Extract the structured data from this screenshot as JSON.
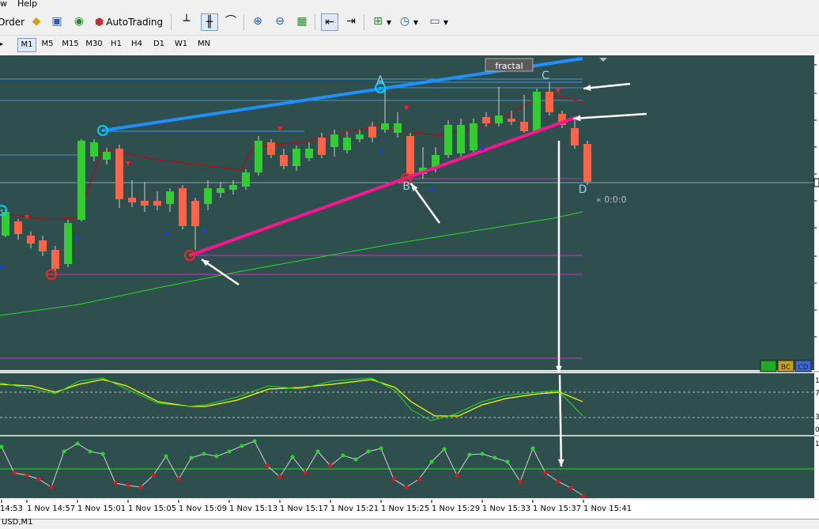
{
  "menu": {
    "help_label": "Help",
    "view_fragment": "w"
  },
  "toolbar": {
    "order_label": "Order",
    "autotrading_label": "AutoTrading"
  },
  "timeframes": [
    {
      "label": "M1",
      "active": true
    },
    {
      "label": "M5",
      "active": false
    },
    {
      "label": "M15",
      "active": false
    },
    {
      "label": "M30",
      "active": false
    },
    {
      "label": "H1",
      "active": false
    },
    {
      "label": "H4",
      "active": false
    },
    {
      "label": "D1",
      "active": false
    },
    {
      "label": "W1",
      "active": false
    },
    {
      "label": "MN",
      "active": false
    }
  ],
  "chart": {
    "fractal_label": "fractal",
    "points": [
      "A",
      "B",
      "C",
      "D"
    ],
    "timer_label": "« 0:0:0",
    "corner_buttons": [
      "",
      "BC",
      "CD"
    ],
    "time_labels": [
      "14:53",
      "1 Nov 14:57",
      "1 Nov 15:01",
      "1 Nov 15:05",
      "1 Nov 15:09",
      "1 Nov 15:13",
      "1 Nov 15:17",
      "1 Nov 15:21",
      "1 Nov 15:25",
      "1 Nov 15:29",
      "1 Nov 15:33",
      "1 Nov 15:37",
      "1 Nov 15:41"
    ],
    "stoch_scale": [
      "1",
      "7",
      "3",
      "0"
    ],
    "ind2_scale": [
      "1"
    ],
    "colors": {
      "background": "#2f4f4f",
      "bull": "#32cd32",
      "bear": "#ff6347",
      "blue_line": "#1e90ff",
      "pink_line": "#ff1493",
      "magenta_level": "#cc33cc",
      "ma_green": "#22dd22",
      "ma_red": "#cc0000",
      "stoch_yellow": "#ffff00"
    }
  },
  "status": {
    "tab_label": "USD,M1"
  }
}
